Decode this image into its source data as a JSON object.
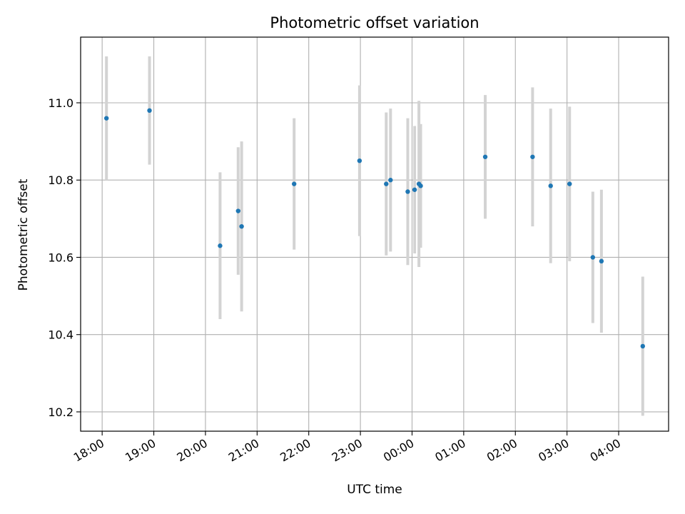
{
  "chart_data": {
    "type": "scatter",
    "title": "Photometric offset variation",
    "xlabel": "UTC time",
    "ylabel": "Photometric offset",
    "x_tick_labels": [
      "18:00",
      "19:00",
      "20:00",
      "21:00",
      "22:00",
      "23:00",
      "00:00",
      "01:00",
      "02:00",
      "03:00",
      "04:00"
    ],
    "y_tick_labels": [
      "10.2",
      "10.4",
      "10.6",
      "10.8",
      "11.0"
    ],
    "xlim": [
      "17:35",
      "04:58"
    ],
    "ylim": [
      10.15,
      11.17
    ],
    "grid": true,
    "colors": {
      "point": "#1f77b4",
      "errorbar": "#d3d3d3",
      "grid": "#b0b0b0"
    },
    "points": [
      {
        "x": "18:05",
        "y": 10.96,
        "err": 0.16
      },
      {
        "x": "18:55",
        "y": 10.98,
        "err": 0.14
      },
      {
        "x": "20:17",
        "y": 10.63,
        "err": 0.19
      },
      {
        "x": "20:38",
        "y": 10.72,
        "err": 0.165
      },
      {
        "x": "20:42",
        "y": 10.68,
        "err": 0.22
      },
      {
        "x": "21:43",
        "y": 10.79,
        "err": 0.17
      },
      {
        "x": "22:59",
        "y": 10.85,
        "err": 0.195
      },
      {
        "x": "23:30",
        "y": 10.79,
        "err": 0.185
      },
      {
        "x": "23:35",
        "y": 10.8,
        "err": 0.185
      },
      {
        "x": "23:55",
        "y": 10.77,
        "err": 0.19
      },
      {
        "x": "00:03",
        "y": 10.775,
        "err": 0.165
      },
      {
        "x": "00:08",
        "y": 10.79,
        "err": 0.215
      },
      {
        "x": "00:10",
        "y": 10.785,
        "err": 0.16
      },
      {
        "x": "01:25",
        "y": 10.86,
        "err": 0.16
      },
      {
        "x": "02:20",
        "y": 10.86,
        "err": 0.18
      },
      {
        "x": "02:41",
        "y": 10.785,
        "err": 0.2
      },
      {
        "x": "03:03",
        "y": 10.79,
        "err": 0.2
      },
      {
        "x": "03:30",
        "y": 10.6,
        "err": 0.17
      },
      {
        "x": "03:40",
        "y": 10.59,
        "err": 0.185
      },
      {
        "x": "04:28",
        "y": 10.37,
        "err": 0.18
      }
    ]
  }
}
